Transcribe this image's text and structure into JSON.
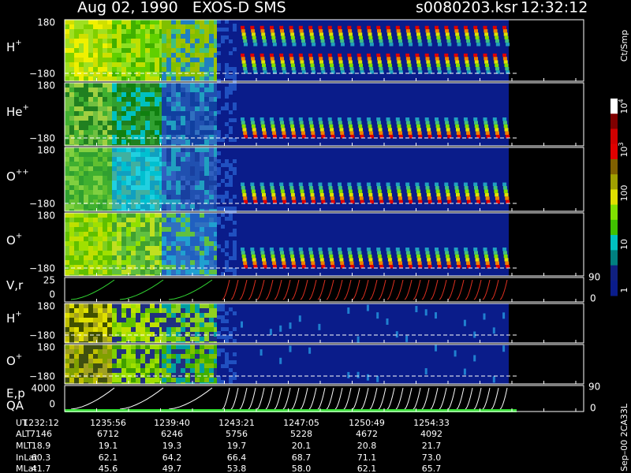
{
  "header": {
    "title": "Aug 02, 1990   EXOS-D SMS",
    "file": "s0080203.ksr",
    "time": "12:32:12"
  },
  "panels": [
    {
      "label": {
        "name": "H",
        "charge": "+"
      },
      "ticks": [
        "180",
        "−180"
      ]
    },
    {
      "label": {
        "name": "He",
        "charge": "+"
      },
      "ticks": [
        "180",
        "−180"
      ]
    },
    {
      "label": {
        "name": "O",
        "charge": "++"
      },
      "ticks": [
        "180",
        "−180"
      ]
    },
    {
      "label": {
        "name": "O",
        "charge": "+"
      },
      "ticks": [
        "180",
        "−180"
      ]
    },
    {
      "label": {
        "name": "V,r"
      },
      "ticks": [
        "25",
        "0"
      ],
      "right_ticks": [
        "90",
        "0"
      ]
    },
    {
      "label": {
        "name": "H",
        "charge": "+"
      },
      "ticks": [
        "180",
        "−180"
      ]
    },
    {
      "label": {
        "name": "O",
        "charge": "+"
      },
      "ticks": [
        "180",
        "−180"
      ]
    },
    {
      "label": {
        "name": "E,p"
      },
      "sublabel": "QA",
      "ticks": [
        "4000",
        "0"
      ],
      "right_ticks": [
        "90",
        "0"
      ]
    }
  ],
  "colorbar": {
    "title": "Ct/Smp",
    "labels": [
      {
        "base": "10",
        "exp": "4"
      },
      {
        "base": "10",
        "exp": "3"
      },
      {
        "base": "100"
      },
      {
        "base": "10"
      },
      {
        "base": "1"
      }
    ]
  },
  "footer": {
    "rows": [
      {
        "label": "UT",
        "values": [
          "1232:12",
          "1235:56",
          "1239:40",
          "1243:21",
          "1247:05",
          "1250:49",
          "1254:33"
        ]
      },
      {
        "label": "ALT",
        "values": [
          "7146",
          "6712",
          "6246",
          "5756",
          "5228",
          "4672",
          "4092"
        ]
      },
      {
        "label": "MLT",
        "values": [
          "18.9",
          "19.1",
          "19.3",
          "19.7",
          "20.1",
          "20.8",
          "21.7"
        ]
      },
      {
        "label": "InLat",
        "values": [
          "60.3",
          "62.1",
          "64.2",
          "66.4",
          "68.7",
          "71.1",
          "73.0"
        ]
      },
      {
        "label": "MLat",
        "values": [
          "41.7",
          "45.6",
          "49.7",
          "53.8",
          "58.0",
          "62.1",
          "65.7"
        ]
      }
    ]
  },
  "stamp": "Sep–00 2CA33L"
}
